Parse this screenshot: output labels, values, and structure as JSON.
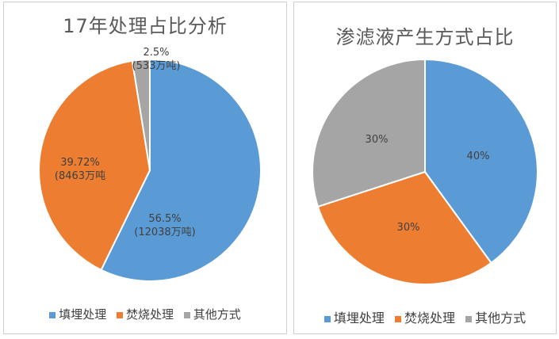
{
  "chart_data": [
    {
      "type": "pie",
      "title": "17年处理占比分析",
      "categories": [
        "填埋处理",
        "焚烧处理",
        "其他方式"
      ],
      "values": [
        56.5,
        39.72,
        2.5
      ],
      "labels": [
        "56.5%",
        "39.72%",
        "2.5%"
      ],
      "sublabels": [
        "(12038万吨)",
        "(8463万吨",
        "(533万吨)"
      ],
      "colors": [
        "#5b9bd5",
        "#ed7d31",
        "#a5a5a5"
      ],
      "legend": "bottom"
    },
    {
      "type": "pie",
      "title": "渗滤液产生方式占比",
      "categories": [
        "填埋处理",
        "焚烧处理",
        "其他方式"
      ],
      "values": [
        40,
        30,
        30
      ],
      "labels": [
        "40%",
        "30%",
        "30%"
      ],
      "colors": [
        "#5b9bd5",
        "#ed7d31",
        "#a5a5a5"
      ],
      "legend": "bottom"
    }
  ]
}
